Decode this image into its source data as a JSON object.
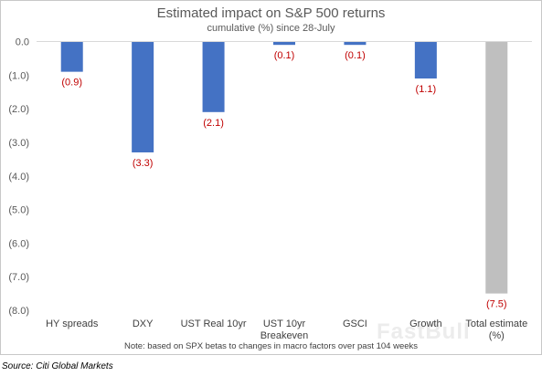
{
  "chart_data": {
    "type": "bar",
    "title": "Estimated impact on S&P 500 returns",
    "subtitle": "cumulative (%) since 28-July",
    "categories": [
      "HY spreads",
      "DXY",
      "UST Real 10yr",
      "UST 10yr Breakeven",
      "GSCI",
      "Growth",
      "Total estimate (%)"
    ],
    "values": [
      -0.9,
      -3.3,
      -2.1,
      -0.1,
      -0.1,
      -1.1,
      -7.5
    ],
    "data_labels": [
      "(0.9)",
      "(3.3)",
      "(2.1)",
      "(0.1)",
      "(0.1)",
      "(1.1)",
      "(7.5)"
    ],
    "y_tick_labels": [
      "0.0",
      "(1.0)",
      "(2.0)",
      "(3.0)",
      "(4.0)",
      "(5.0)",
      "(6.0)",
      "(7.0)",
      "(8.0)"
    ],
    "ylim": [
      -8,
      0
    ],
    "grid": false,
    "legend": "none",
    "colors": {
      "bar": "#4472c4",
      "total_bar": "#bfbfbf",
      "data_label": "#c00000"
    }
  },
  "note": "Note: based on SPX betas to changes in macro factors over past 104 weeks",
  "source": "Source: Citi Global Markets",
  "watermark": "FastBull"
}
